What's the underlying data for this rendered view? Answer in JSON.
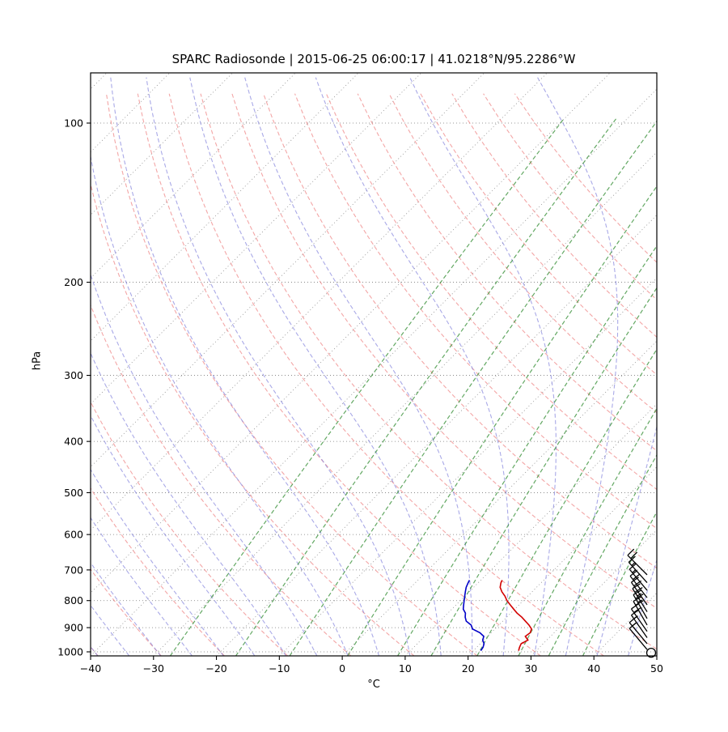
{
  "title": "SPARC Radiosonde | 2015-06-25 06:00:17 | 41.0218°N/95.2286°W",
  "chart_data": {
    "type": "line",
    "chart_kind": "skewt_logp_sounding",
    "title": "SPARC Radiosonde | 2015-06-25 06:00:17 | 41.0218°N/95.2286°W",
    "xlabel": "°C",
    "ylabel": "hPa",
    "x_range": [
      -40,
      50
    ],
    "x_ticks": [
      -40,
      -30,
      -20,
      -10,
      0,
      10,
      20,
      30,
      40,
      50
    ],
    "x_tick_labels": [
      "−40",
      "−30",
      "−20",
      "−10",
      "0",
      "10",
      "20",
      "30",
      "40",
      "50"
    ],
    "y_ticks": [
      100,
      200,
      300,
      400,
      500,
      600,
      700,
      800,
      900,
      1000
    ],
    "p_range": [
      80,
      1018
    ],
    "skew_deg": 45,
    "grid": true,
    "legend": "none",
    "isotherms_C": {
      "start": -130,
      "end": 50,
      "step": 10
    },
    "dry_adiabats_C": {
      "start": -40,
      "end": 150,
      "step": 10
    },
    "moist_adiabats_C": {
      "start": -40,
      "end": 45,
      "step": 5
    },
    "mixing_ratio_g_kg": [
      0.4,
      1,
      2,
      4,
      7,
      10,
      16,
      24,
      32,
      44
    ],
    "sounding": {
      "pressure_hPa": [
        995,
        980,
        965,
        950,
        935,
        920,
        905,
        890,
        875,
        860,
        845,
        830,
        815,
        800,
        785,
        770,
        755,
        740,
        732
      ],
      "temperature_C": [
        27.2,
        26.8,
        26.5,
        27.0,
        26.0,
        26.2,
        25.8,
        24.8,
        23.6,
        22.4,
        21.0,
        19.8,
        18.6,
        17.4,
        16.4,
        15.2,
        14.2,
        13.6,
        13.4
      ],
      "dewpoint_C": [
        21.2,
        21.0,
        20.6,
        19.8,
        19.4,
        18.2,
        16.4,
        15.6,
        14.2,
        13.4,
        12.8,
        11.8,
        11.2,
        10.6,
        10.0,
        9.4,
        8.8,
        8.4,
        8.2
      ]
    },
    "wind_barbs": [
      {
        "p": 990,
        "speed_kt": 10,
        "dir_deg": 320
      },
      {
        "p": 965,
        "speed_kt": 15,
        "dir_deg": 320
      },
      {
        "p": 940,
        "speed_kt": 15,
        "dir_deg": 325
      },
      {
        "p": 915,
        "speed_kt": 20,
        "dir_deg": 325
      },
      {
        "p": 890,
        "speed_kt": 20,
        "dir_deg": 330
      },
      {
        "p": 865,
        "speed_kt": 25,
        "dir_deg": 330
      },
      {
        "p": 840,
        "speed_kt": 25,
        "dir_deg": 328
      },
      {
        "p": 815,
        "speed_kt": 20,
        "dir_deg": 325
      },
      {
        "p": 790,
        "speed_kt": 20,
        "dir_deg": 322
      },
      {
        "p": 765,
        "speed_kt": 15,
        "dir_deg": 320
      },
      {
        "p": 740,
        "speed_kt": 15,
        "dir_deg": 318
      },
      {
        "p": 715,
        "speed_kt": 20,
        "dir_deg": 315
      }
    ],
    "surface_marker": {
      "T_C": 48.6,
      "p_hPa": 1004
    },
    "style": {
      "isotherm_color": "#404040",
      "dry_adiabat_color": "#ee8080",
      "moist_adiabat_color": "#8585dd",
      "mixing_ratio_color": "#2f8b2f",
      "temperature_color": "#d20000",
      "dewpoint_color": "#0000c8",
      "barb_color": "#000000",
      "frame_color": "#000000",
      "background": "#ffffff"
    }
  }
}
